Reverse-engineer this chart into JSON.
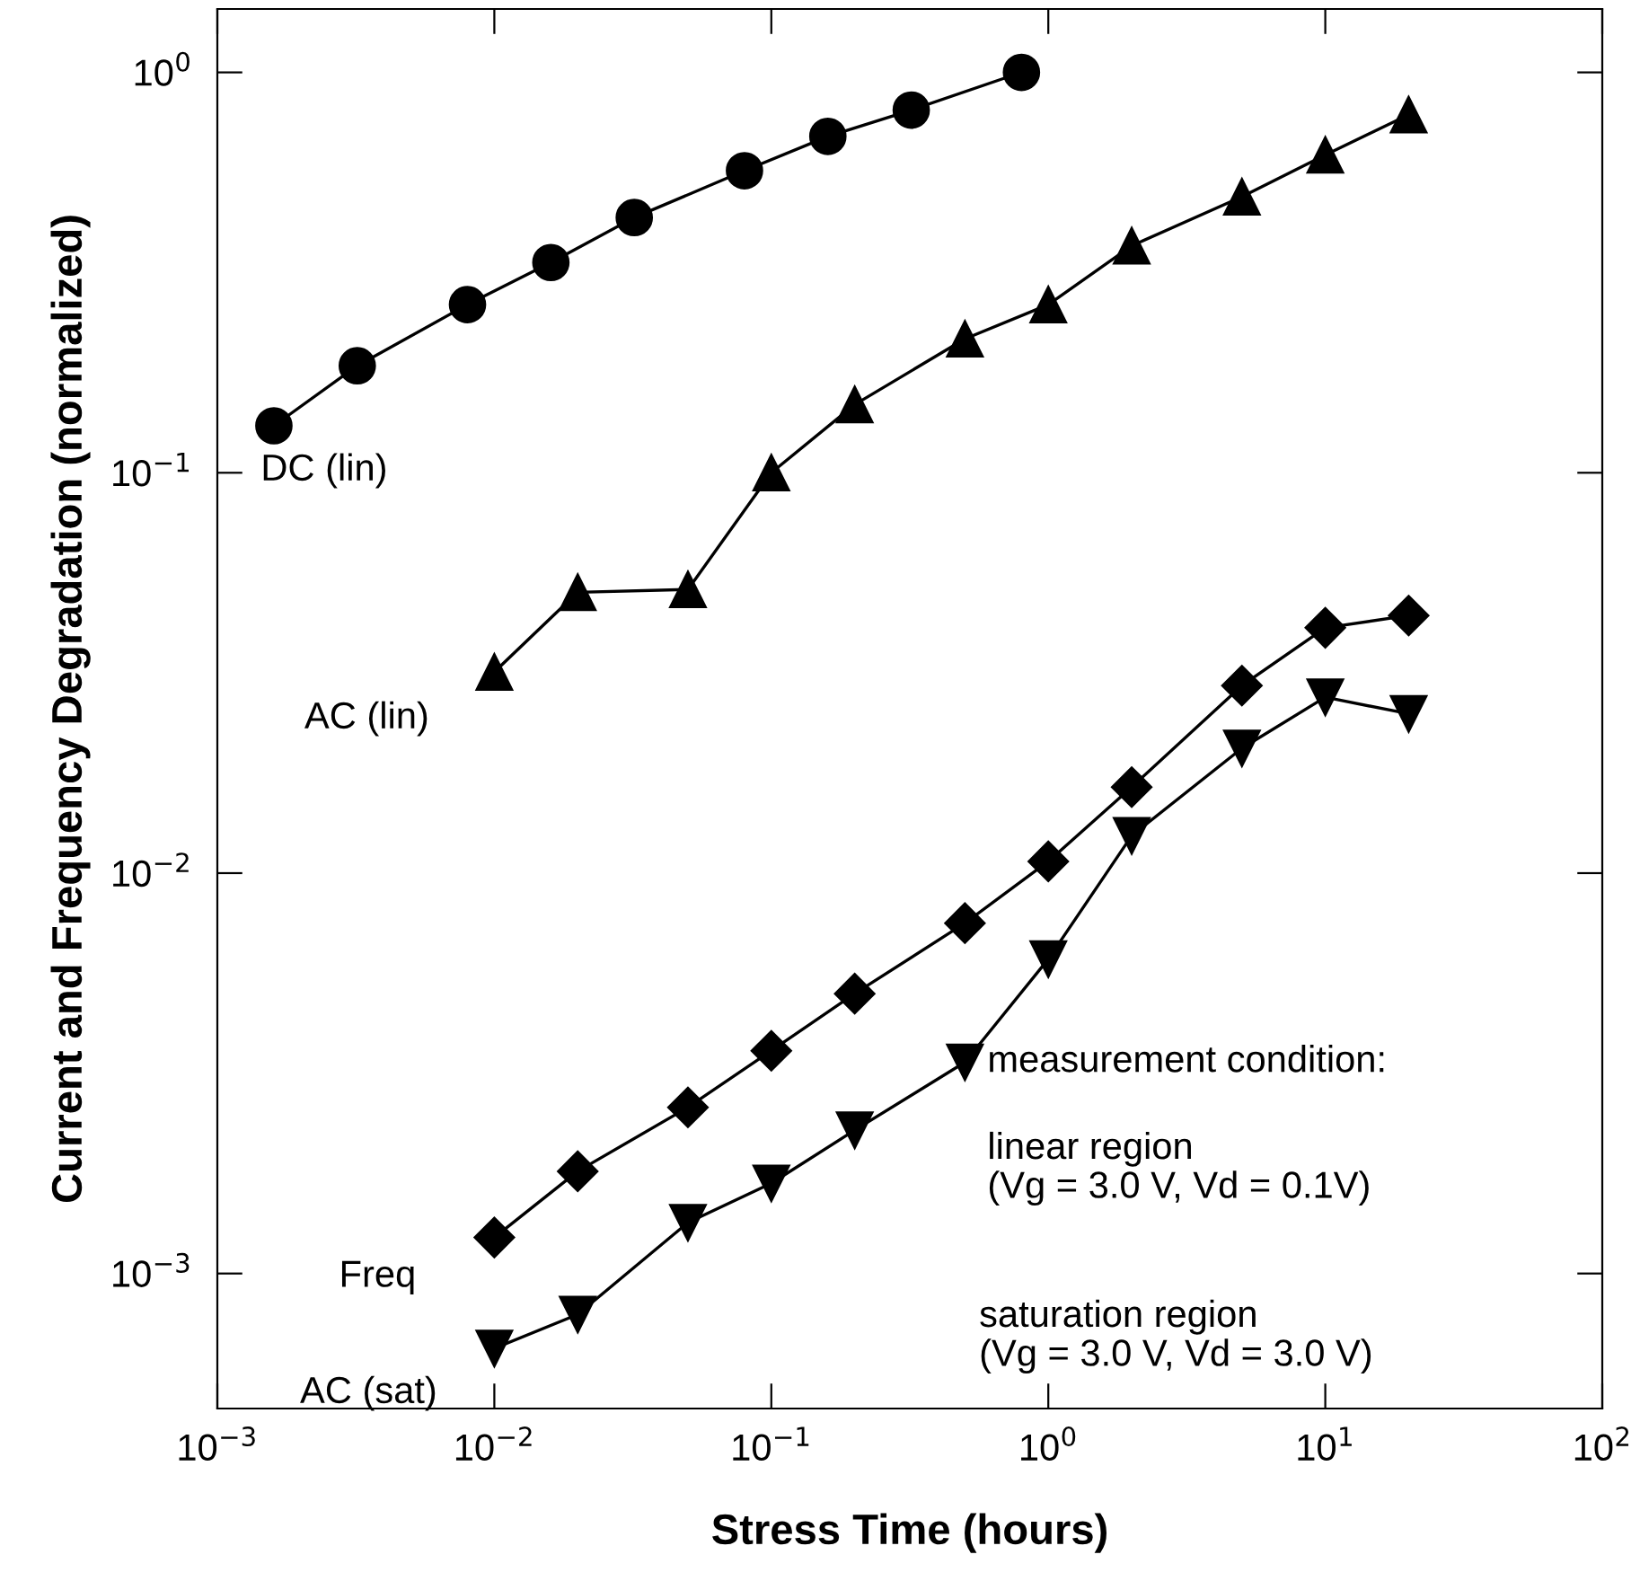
{
  "chart_data": {
    "type": "line",
    "xlabel": "Stress Time (hours)",
    "ylabel": "Current and Frequency Degradation (normalized)",
    "log": "xy",
    "grid": false,
    "legend": false,
    "line_style": "solid",
    "xlim": [
      0.001,
      100
    ],
    "xticks": [
      {
        "value": 0.001,
        "label": "10$^{−3}$"
      },
      {
        "value": 0.01,
        "label": "10$^{−2}$"
      },
      {
        "value": 0.1,
        "label": "10$^{−1}$"
      },
      {
        "value": 1,
        "label": "10$^{0}$"
      },
      {
        "value": 10,
        "label": "10$^{1}$"
      },
      {
        "value": 100,
        "label": "10$^{2}$"
      }
    ],
    "ylim": [
      0.00046,
      1.44
    ],
    "yticks": [
      {
        "value": 0.001,
        "label": "10$^{−3}$"
      },
      {
        "value": 0.01,
        "label": "10$^{−2}$"
      },
      {
        "value": 0.1,
        "label": "10$^{−1}$"
      },
      {
        "value": 1,
        "label": "10$^{0}$"
      }
    ],
    "series": [
      {
        "name": "DC (lin)",
        "color": "#000000",
        "marker": "circle",
        "x": [
          0.0016,
          0.0032,
          0.008,
          0.016,
          0.032,
          0.08,
          0.16,
          0.32,
          0.8
        ],
        "values": [
          0.131,
          0.185,
          0.263,
          0.335,
          0.434,
          0.568,
          0.692,
          0.805,
          1.0
        ]
      },
      {
        "name": "AC (lin)",
        "color": "#000000",
        "marker": "triangle",
        "x": [
          0.01,
          0.02,
          0.05,
          0.1,
          0.2,
          0.5,
          1,
          2,
          5,
          10,
          20
        ],
        "values": [
          0.0318,
          0.0503,
          0.0511,
          0.1,
          0.148,
          0.216,
          0.263,
          0.369,
          0.489,
          0.622,
          0.784
        ]
      },
      {
        "name": "Freq",
        "color": "#000000",
        "marker": "diamond",
        "x": [
          0.01,
          0.02,
          0.05,
          0.1,
          0.2,
          0.5,
          1,
          2,
          5,
          10,
          20
        ],
        "values": [
          0.00123,
          0.0018,
          0.0026,
          0.0036,
          0.005,
          0.0075,
          0.0107,
          0.0164,
          0.0294,
          0.041,
          0.044
        ]
      },
      {
        "name": "AC (sat)",
        "color": "#000000",
        "marker": "triangle_down",
        "x": [
          0.01,
          0.02,
          0.05,
          0.1,
          0.2,
          0.5,
          1,
          2,
          5,
          10,
          20
        ],
        "values": [
          0.00065,
          0.00079,
          0.00134,
          0.00168,
          0.00228,
          0.00337,
          0.0061,
          0.0124,
          0.0205,
          0.0275,
          0.025
        ]
      }
    ],
    "annotations": [
      "measurement condition:",
      "linear region\n(Vg = 3.0 V, Vd = 0.1V)",
      "saturation region\n(Vg = 3.0 V, Vd = 3.0 V)"
    ]
  }
}
